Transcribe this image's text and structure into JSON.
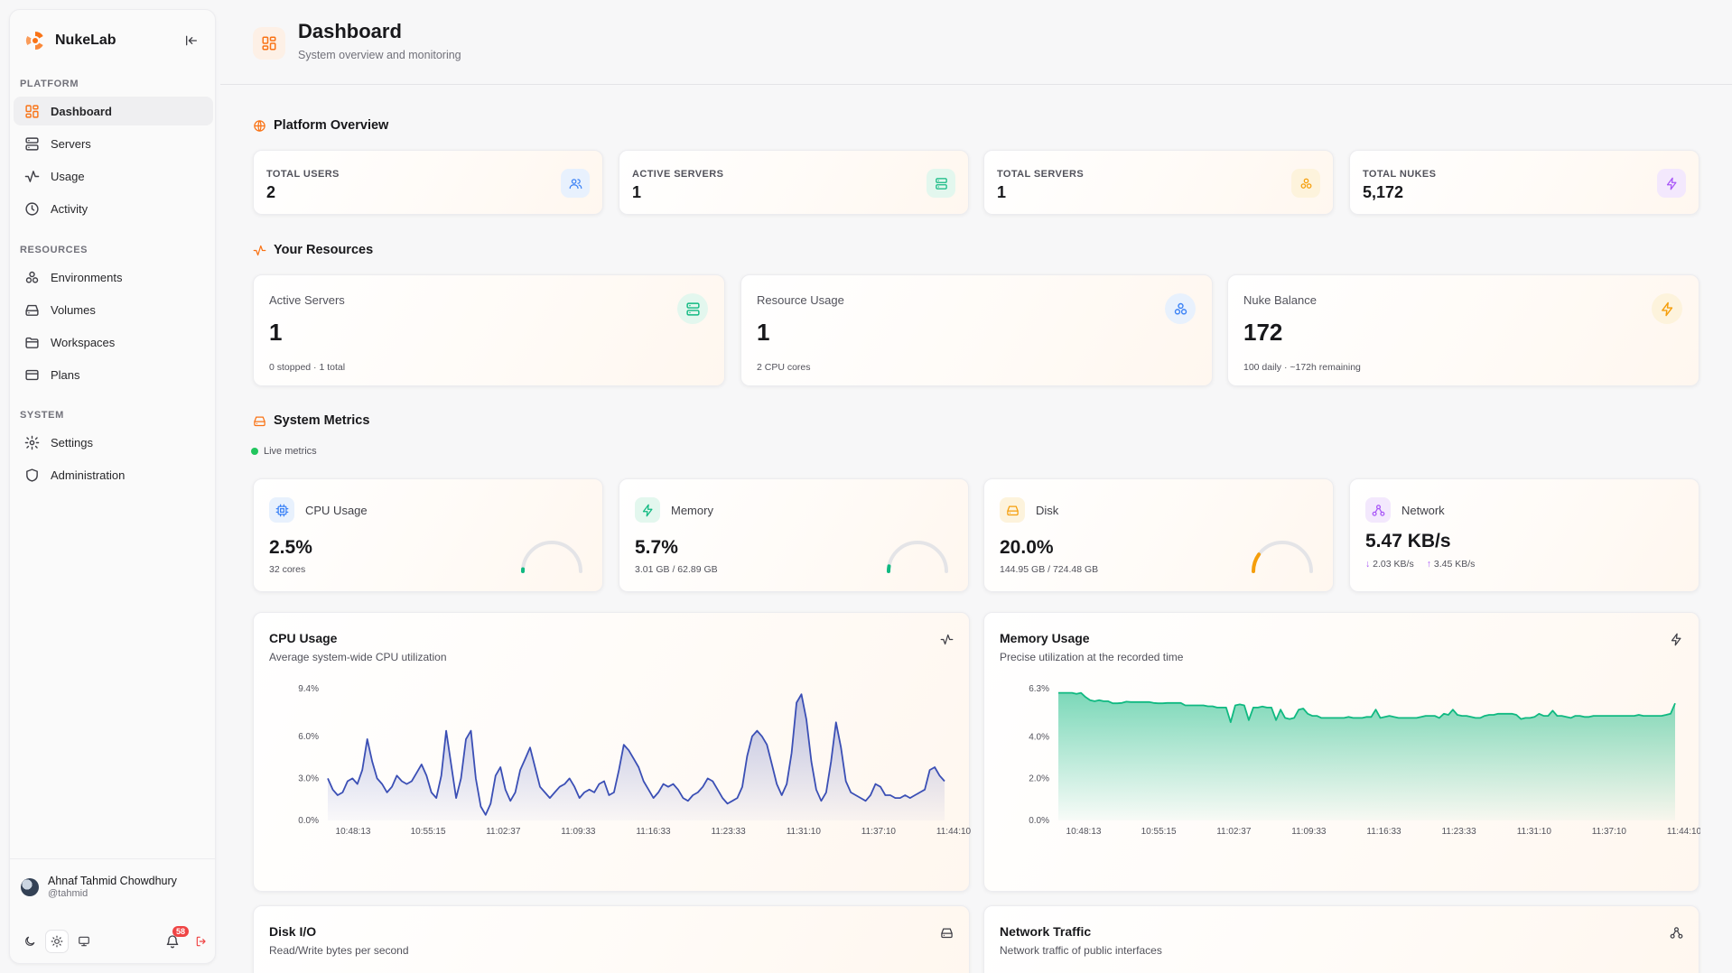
{
  "app": {
    "name": "NukeLab"
  },
  "sidebar": {
    "sections": [
      {
        "label": "PLATFORM",
        "items": [
          {
            "label": "Dashboard",
            "icon": "dashboard-icon",
            "active": true
          },
          {
            "label": "Servers",
            "icon": "server-icon"
          },
          {
            "label": "Usage",
            "icon": "activity-icon"
          },
          {
            "label": "Activity",
            "icon": "clock-icon"
          }
        ]
      },
      {
        "label": "RESOURCES",
        "items": [
          {
            "label": "Environments",
            "icon": "environments-icon"
          },
          {
            "label": "Volumes",
            "icon": "hard-drive-icon"
          },
          {
            "label": "Workspaces",
            "icon": "folder-icon"
          },
          {
            "label": "Plans",
            "icon": "credit-card-icon"
          }
        ]
      },
      {
        "label": "SYSTEM",
        "items": [
          {
            "label": "Settings",
            "icon": "gear-icon"
          },
          {
            "label": "Administration",
            "icon": "shield-icon"
          }
        ]
      }
    ],
    "user": {
      "name": "Ahnaf Tahmid Chowdhury",
      "handle": "@tahmid"
    },
    "notifications_count": "58"
  },
  "header": {
    "title": "Dashboard",
    "subtitle": "System overview and monitoring"
  },
  "platform_overview": {
    "heading": "Platform Overview",
    "stats": [
      {
        "label": "TOTAL USERS",
        "value": "2",
        "icon": "users-icon",
        "color": "#3b82f6",
        "bg": "#e8f1fd"
      },
      {
        "label": "ACTIVE SERVERS",
        "value": "1",
        "icon": "server-icon",
        "color": "#10b981",
        "bg": "#e3f7ee"
      },
      {
        "label": "TOTAL SERVERS",
        "value": "1",
        "icon": "environments-icon",
        "color": "#f59e0b",
        "bg": "#fdf3dc"
      },
      {
        "label": "TOTAL NUKES",
        "value": "5,172",
        "icon": "zap-icon",
        "color": "#a855f7",
        "bg": "#f3e8fd"
      }
    ]
  },
  "your_resources": {
    "heading": "Your Resources",
    "cards": [
      {
        "label": "Active Servers",
        "value": "1",
        "sub": "0 stopped · 1 total",
        "icon": "server-icon",
        "color": "#10b981",
        "bg": "#e3f7ee"
      },
      {
        "label": "Resource Usage",
        "value": "1",
        "sub": "2 CPU cores",
        "icon": "environments-icon",
        "color": "#3b82f6",
        "bg": "#e8f1fd"
      },
      {
        "label": "Nuke Balance",
        "value": "172",
        "sub": "100 daily · ~172h remaining",
        "icon": "zap-icon",
        "color": "#f59e0b",
        "bg": "#fdf3dc"
      }
    ]
  },
  "system_metrics": {
    "heading": "System Metrics",
    "live_label": "Live metrics",
    "cards": [
      {
        "label": "CPU Usage",
        "value": "2.5%",
        "sub": "32 cores",
        "percent": 2.5,
        "icon": "cpu-icon",
        "color": "#3b82f6",
        "bg": "#e8f1fd",
        "gauge_color": "#10b981"
      },
      {
        "label": "Memory",
        "value": "5.7%",
        "sub": "3.01 GB / 62.89 GB",
        "percent": 5.7,
        "icon": "zap-icon",
        "color": "#10b981",
        "bg": "#e3f7ee",
        "gauge_color": "#10b981"
      },
      {
        "label": "Disk",
        "value": "20.0%",
        "sub": "144.95 GB / 724.48 GB",
        "percent": 20.0,
        "icon": "hard-drive-icon",
        "color": "#f59e0b",
        "bg": "#fdf3dc",
        "gauge_color": "#f59e0b"
      }
    ],
    "network": {
      "label": "Network",
      "value": "5.47 KB/s",
      "down": "2.03 KB/s",
      "up": "3.45 KB/s",
      "icon": "network-icon",
      "color": "#a855f7",
      "bg": "#f3e8fd"
    }
  },
  "charts": {
    "cpu": {
      "title": "CPU Usage",
      "subtitle": "Average system-wide CPU utilization",
      "icon": "activity-icon"
    },
    "memory": {
      "title": "Memory Usage",
      "subtitle": "Precise utilization at the recorded time",
      "icon": "zap-icon"
    },
    "disk": {
      "title": "Disk I/O",
      "subtitle": "Read/Write bytes per second",
      "icon": "hard-drive-icon"
    },
    "network": {
      "title": "Network Traffic",
      "subtitle": "Network traffic of public interfaces",
      "icon": "network-icon"
    }
  },
  "chart_data": [
    {
      "type": "area",
      "title": "CPU Usage",
      "x_ticks": [
        "10:48:13",
        "10:55:15",
        "11:02:37",
        "11:09:33",
        "11:16:33",
        "11:23:33",
        "11:31:10",
        "11:37:10",
        "11:44:10"
      ],
      "y_ticks": [
        "0.0%",
        "3.0%",
        "6.0%",
        "9.4%"
      ],
      "ylim": [
        0,
        9.4
      ],
      "color": "#3b4fb5",
      "values": [
        3.0,
        2.2,
        1.8,
        2.0,
        2.8,
        3.0,
        2.6,
        3.6,
        5.8,
        4.2,
        3.0,
        2.6,
        2.0,
        2.4,
        3.2,
        2.8,
        2.6,
        2.8,
        3.4,
        4.0,
        3.2,
        2.0,
        1.6,
        3.2,
        6.4,
        4.0,
        1.6,
        3.0,
        5.8,
        6.4,
        3.0,
        1.0,
        0.4,
        1.2,
        3.2,
        3.8,
        2.2,
        1.4,
        2.0,
        3.6,
        4.4,
        5.2,
        3.8,
        2.4,
        2.0,
        1.6,
        2.0,
        2.4,
        2.6,
        3.0,
        2.4,
        1.6,
        2.0,
        2.2,
        2.0,
        2.6,
        2.8,
        1.8,
        2.0,
        3.6,
        5.4,
        5.0,
        4.4,
        3.8,
        2.8,
        2.2,
        1.6,
        2.0,
        2.6,
        2.4,
        2.6,
        2.2,
        1.6,
        1.4,
        1.8,
        2.0,
        2.4,
        3.0,
        2.8,
        2.2,
        1.6,
        1.2,
        1.4,
        1.6,
        2.4,
        4.6,
        6.0,
        6.4,
        6.0,
        5.4,
        4.0,
        2.6,
        1.8,
        2.6,
        4.8,
        8.4,
        9.0,
        7.2,
        4.2,
        2.2,
        1.4,
        2.0,
        4.2,
        7.0,
        5.2,
        2.8,
        2.0,
        1.8,
        1.6,
        1.4,
        1.8,
        2.6,
        2.4,
        1.8,
        1.8,
        1.6,
        1.6,
        1.8,
        1.6,
        1.8,
        2.0,
        2.2,
        3.6,
        3.8,
        3.2,
        2.8
      ]
    },
    {
      "type": "area",
      "title": "Memory Usage",
      "x_ticks": [
        "10:48:13",
        "10:55:15",
        "11:02:37",
        "11:09:33",
        "11:16:33",
        "11:23:33",
        "11:31:10",
        "11:37:10",
        "11:44:10"
      ],
      "y_ticks": [
        "0.0%",
        "2.0%",
        "4.0%",
        "6.3%"
      ],
      "ylim": [
        0,
        6.3
      ],
      "color": "#10b981",
      "values": [
        6.1,
        6.1,
        6.1,
        6.1,
        6.05,
        6.1,
        5.9,
        5.75,
        5.7,
        5.75,
        5.7,
        5.7,
        5.6,
        5.6,
        5.62,
        5.68,
        5.66,
        5.66,
        5.66,
        5.66,
        5.66,
        5.62,
        5.6,
        5.6,
        5.62,
        5.62,
        5.62,
        5.62,
        5.5,
        5.5,
        5.5,
        5.5,
        5.5,
        5.46,
        5.46,
        5.4,
        5.4,
        5.4,
        4.7,
        5.5,
        5.55,
        5.5,
        4.8,
        5.4,
        5.4,
        5.45,
        5.4,
        5.4,
        4.8,
        5.3,
        4.9,
        4.85,
        4.9,
        5.3,
        5.35,
        5.1,
        5.0,
        5.0,
        4.9,
        4.9,
        4.9,
        4.9,
        4.9,
        4.9,
        4.95,
        4.9,
        4.9,
        4.9,
        4.95,
        4.95,
        5.3,
        4.9,
        4.95,
        5.0,
        4.95,
        4.9,
        4.9,
        4.9,
        4.9,
        4.9,
        4.95,
        5.0,
        5.0,
        5.0,
        4.9,
        5.1,
        5.05,
        5.3,
        5.05,
        5.0,
        5.0,
        4.95,
        4.9,
        4.9,
        5.0,
        5.05,
        5.05,
        5.1,
        5.1,
        5.1,
        5.1,
        5.05,
        4.85,
        4.9,
        4.9,
        4.95,
        5.1,
        5.0,
        5.0,
        5.25,
        5.0,
        5.0,
        4.95,
        4.9,
        5.0,
        5.0,
        4.95,
        4.95,
        5.0,
        5.0,
        5.0,
        5.0,
        5.0,
        5.0,
        5.0,
        5.0,
        5.0,
        5.0,
        5.05,
        5.0,
        5.0,
        5.0,
        5.0,
        5.0,
        5.05,
        5.1,
        5.6
      ]
    }
  ]
}
